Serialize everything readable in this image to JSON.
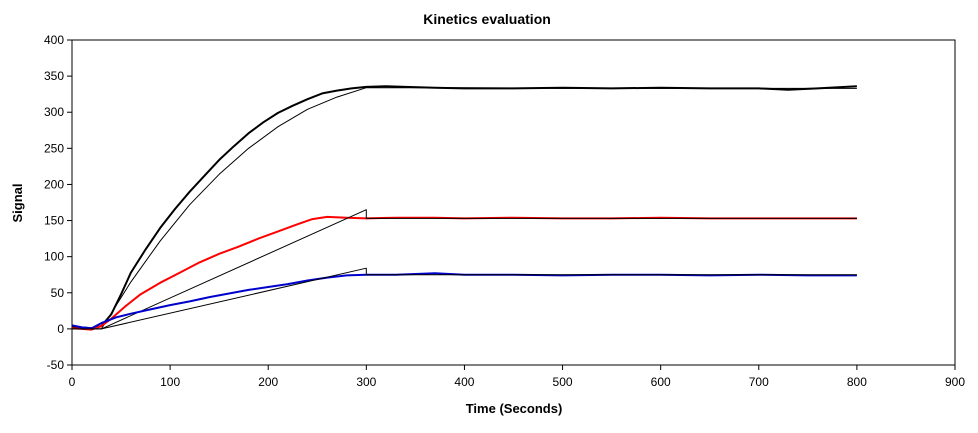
{
  "chart_data": {
    "type": "line",
    "title": "Kinetics evaluation",
    "xlabel": "Time (Seconds)",
    "ylabel": "Signal",
    "xlim": [
      0,
      900
    ],
    "ylim": [
      -50,
      400
    ],
    "xticks": [
      0,
      100,
      200,
      300,
      400,
      500,
      600,
      700,
      800,
      900
    ],
    "yticks": [
      -50,
      0,
      50,
      100,
      150,
      200,
      250,
      300,
      350,
      400
    ],
    "grid": false,
    "legend": "none",
    "series": [
      {
        "color": "#000000",
        "kind": "measured",
        "x": [
          0,
          10,
          20,
          30,
          40,
          50,
          60,
          75,
          90,
          105,
          120,
          135,
          150,
          165,
          180,
          195,
          210,
          225,
          240,
          255,
          270,
          285,
          300,
          320,
          340,
          370,
          400,
          450,
          500,
          550,
          600,
          650,
          700,
          730,
          760,
          800
        ],
        "y": [
          3,
          2,
          1,
          4,
          20,
          48,
          78,
          110,
          140,
          166,
          190,
          212,
          234,
          253,
          271,
          286,
          299,
          309,
          318,
          326,
          330,
          333,
          335,
          336,
          335,
          334,
          333,
          333,
          334,
          333,
          334,
          333,
          333,
          331,
          333,
          336
        ]
      },
      {
        "color": "#000000",
        "kind": "fit",
        "x": [
          0,
          30,
          60,
          90,
          120,
          150,
          180,
          210,
          240,
          270,
          300,
          310,
          400,
          500,
          600,
          700,
          800
        ],
        "y": [
          0,
          0,
          65,
          122,
          172,
          214,
          250,
          280,
          304,
          321,
          334,
          334,
          334,
          333,
          333,
          333,
          333
        ]
      },
      {
        "color": "#ff0000",
        "kind": "measured",
        "x": [
          0,
          10,
          20,
          30,
          40,
          55,
          70,
          90,
          110,
          130,
          150,
          170,
          190,
          210,
          230,
          245,
          260,
          280,
          300,
          330,
          370,
          400,
          450,
          500,
          550,
          600,
          650,
          700,
          750,
          800
        ],
        "y": [
          1,
          0,
          -1,
          4,
          14,
          32,
          48,
          64,
          78,
          92,
          104,
          114,
          125,
          135,
          145,
          152,
          155,
          154,
          153,
          154,
          154,
          153,
          154,
          153,
          153,
          154,
          153,
          153,
          153,
          153
        ]
      },
      {
        "color": "#000000",
        "kind": "fit",
        "x": [
          0,
          30,
          300,
          300,
          800
        ],
        "y": [
          0,
          0,
          165,
          153,
          153
        ]
      },
      {
        "color": "#0000cc",
        "kind": "measured",
        "x": [
          0,
          10,
          20,
          30,
          45,
          60,
          80,
          100,
          120,
          140,
          160,
          180,
          200,
          220,
          240,
          260,
          280,
          300,
          330,
          370,
          400,
          450,
          500,
          550,
          600,
          650,
          700,
          750,
          800
        ],
        "y": [
          5,
          2,
          1,
          8,
          16,
          21,
          27,
          33,
          38,
          44,
          49,
          54,
          58,
          62,
          67,
          71,
          74,
          75,
          75,
          77,
          75,
          75,
          74,
          75,
          75,
          74,
          75,
          74,
          74
        ]
      },
      {
        "color": "#000000",
        "kind": "fit",
        "x": [
          0,
          30,
          300,
          300,
          800
        ],
        "y": [
          0,
          0,
          84,
          75,
          75
        ]
      }
    ]
  }
}
